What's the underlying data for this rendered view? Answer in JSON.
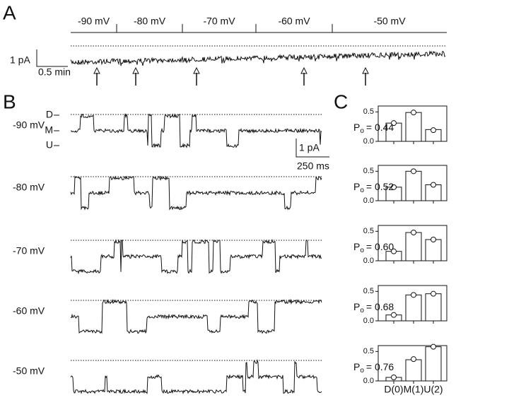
{
  "panel_labels": [
    "A",
    "B",
    "C"
  ],
  "panel_a": {
    "voltages": [
      "-90 mV",
      "-80 mV",
      "-70 mV",
      "-60 mV",
      "-50 mV"
    ],
    "scale_y": "1 pA",
    "scale_x": "0.5 min"
  },
  "panel_b": {
    "voltages": [
      "-90 mV",
      "-80 mV",
      "-70 mV",
      "-60 mV",
      "-50 mV"
    ],
    "levels": [
      "D",
      "M",
      "U"
    ],
    "scale_y": "1 pA",
    "scale_x": "250 ms"
  },
  "chart_data": [
    {
      "type": "bar",
      "annotation_symbol": "P",
      "annotation_subscript": "o",
      "annotation": "= 0.44",
      "categories": [
        null,
        null,
        null
      ],
      "values": [
        0.31,
        0.49,
        0.2
      ],
      "circle_values": [
        0.31,
        0.49,
        0.19
      ],
      "ylim": [
        0,
        0.6
      ],
      "yticks": [
        {
          "value": 0,
          "label": "0.0"
        },
        0.5
      ],
      "color": "#ffffff"
    },
    {
      "type": "bar",
      "annotation_symbol": "P",
      "annotation_subscript": "o",
      "annotation": "= 0.52",
      "categories": [
        null,
        null,
        null
      ],
      "values": [
        0.23,
        0.5,
        0.27
      ],
      "circle_values": [
        0.23,
        0.5,
        0.27
      ],
      "ylim": [
        0,
        0.6
      ],
      "yticks": [
        {
          "value": 0,
          "label": "0.0"
        },
        0.5
      ],
      "color": "#ffffff"
    },
    {
      "type": "bar",
      "annotation_symbol": "P",
      "annotation_subscript": "o",
      "annotation": "= 0.60",
      "categories": [
        null,
        null,
        null
      ],
      "values": [
        0.16,
        0.48,
        0.36
      ],
      "circle_values": [
        0.16,
        0.48,
        0.36
      ],
      "ylim": [
        0,
        0.6
      ],
      "yticks": [
        {
          "value": 0,
          "label": "0.0"
        },
        0.5
      ],
      "color": "#ffffff"
    },
    {
      "type": "bar",
      "annotation_symbol": "P",
      "annotation_subscript": "o",
      "annotation": "= 0.68",
      "categories": [
        null,
        null,
        null
      ],
      "values": [
        0.1,
        0.44,
        0.46
      ],
      "circle_values": [
        0.1,
        0.44,
        0.46
      ],
      "ylim": [
        0,
        0.6
      ],
      "yticks": [
        {
          "value": 0,
          "label": "0.0"
        },
        0.5
      ],
      "color": "#ffffff"
    },
    {
      "type": "bar",
      "annotation_symbol": "P",
      "annotation_subscript": "o",
      "annotation": "= 0.76",
      "categories": [
        "D(0)",
        "M(1)",
        "U(2)"
      ],
      "values": [
        0.06,
        0.36,
        0.58
      ],
      "circle_values": [
        0.06,
        0.37,
        0.58
      ],
      "ylim": [
        0,
        0.6
      ],
      "yticks": [
        {
          "value": 0,
          "label": "0.0"
        },
        0.5
      ],
      "color": "#ffffff"
    }
  ]
}
